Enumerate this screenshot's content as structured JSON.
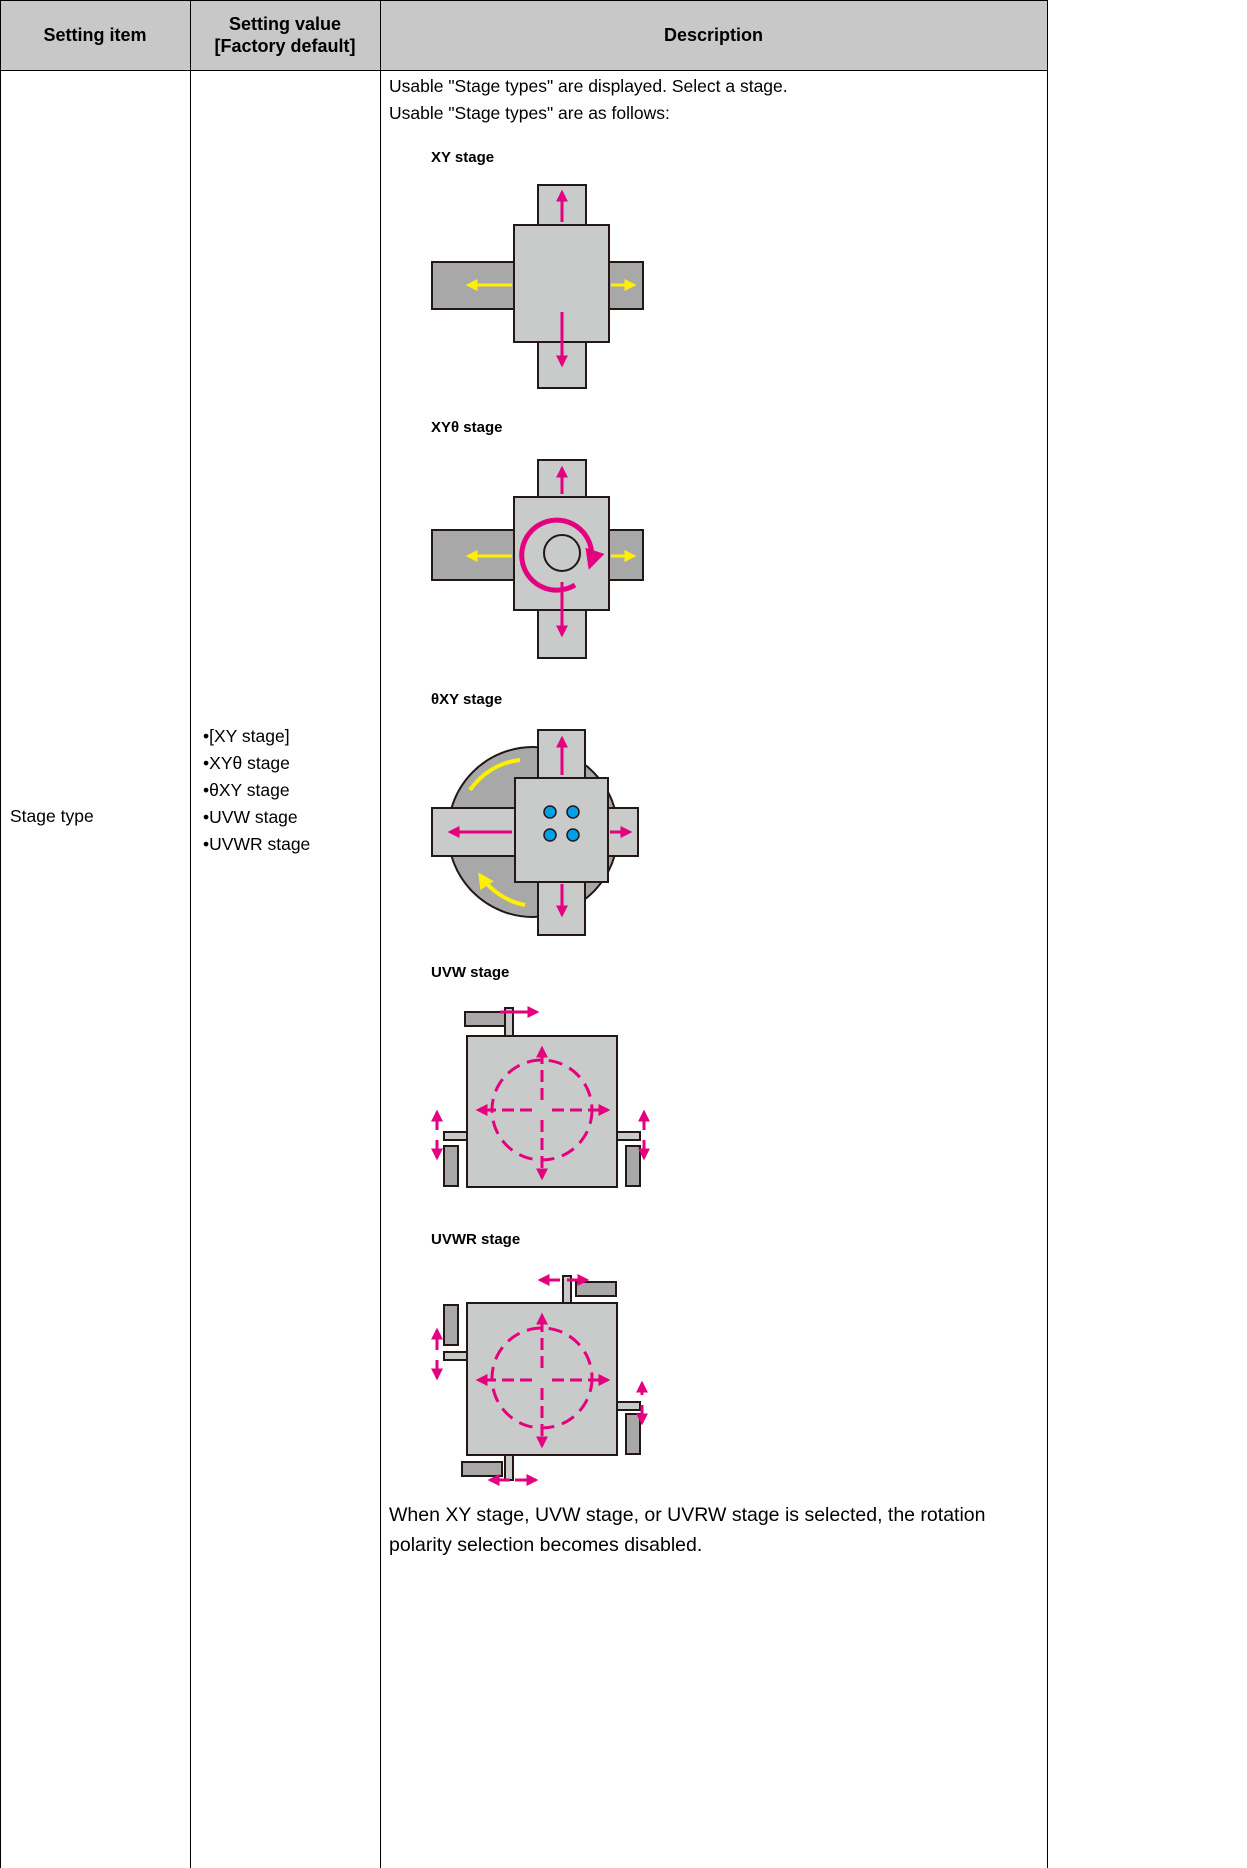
{
  "table": {
    "headers": [
      "Setting item",
      [
        "Setting value",
        "[Factory default]"
      ],
      "Description"
    ],
    "rows": [
      {
        "item": "Stage type",
        "values": [
          "[XY stage]",
          "XYθ stage",
          "θXY stage",
          "UVW stage",
          "UVWR stage"
        ],
        "description": {
          "intro": [
            "Usable \"Stage types\" are displayed. Select a stage.",
            "Usable \"Stage types\" are as follows:"
          ],
          "stages": [
            "XY stage",
            "XYθ stage",
            "θXY stage",
            "UVW stage",
            "UVWR stage"
          ],
          "note": "When XY stage, UVW stage, or UVRW stage is selected, the rotation polarity selection becomes disabled."
        }
      }
    ]
  }
}
